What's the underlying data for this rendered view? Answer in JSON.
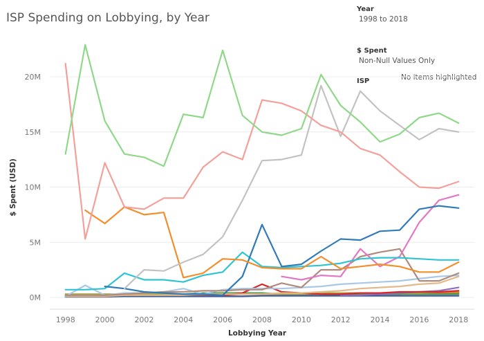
{
  "chart_data": {
    "type": "line",
    "title": "ISP Spending on Lobbying, by Year",
    "xlabel": "Lobbying Year",
    "ylabel": "$ Spent (USD)",
    "ylim": [
      0,
      24000000
    ],
    "xlim": [
      1997.2,
      2018.8
    ],
    "x": [
      1998,
      1999,
      2000,
      2001,
      2002,
      2003,
      2004,
      2005,
      2006,
      2007,
      2008,
      2009,
      2010,
      2011,
      2012,
      2013,
      2014,
      2015,
      2016,
      2017,
      2018
    ],
    "x_ticks": [
      {
        "value": 1998,
        "label": "1998"
      },
      {
        "value": 2000,
        "label": "2000"
      },
      {
        "value": 2002,
        "label": "2002"
      },
      {
        "value": 2004,
        "label": "2004"
      },
      {
        "value": 2006,
        "label": "2006"
      },
      {
        "value": 2008,
        "label": "2008"
      },
      {
        "value": 2010,
        "label": "2010"
      },
      {
        "value": 2012,
        "label": "2012"
      },
      {
        "value": 2014,
        "label": "2014"
      },
      {
        "value": 2016,
        "label": "2016"
      },
      {
        "value": 2018,
        "label": "2018"
      }
    ],
    "y_ticks": [
      {
        "value": 0,
        "label": "0M"
      },
      {
        "value": 5000000,
        "label": "5M"
      },
      {
        "value": 10000000,
        "label": "10M"
      },
      {
        "value": 15000000,
        "label": "15M"
      },
      {
        "value": 20000000,
        "label": "20M"
      }
    ],
    "legend": {
      "year_heading": "Year",
      "year_range": "1998 to 2018",
      "spent_heading": "$ Spent",
      "spent_filter": "Non-Null Values Only",
      "isp_heading": "ISP",
      "highlight_status": "No items highlighted"
    },
    "series": [
      {
        "name": "green",
        "color": "#8fd888",
        "values": [
          13.0,
          22.9,
          16.0,
          13.0,
          12.7,
          11.9,
          16.6,
          16.3,
          22.4,
          16.5,
          15.0,
          14.7,
          15.3,
          20.2,
          17.4,
          15.9,
          14.1,
          14.8,
          16.3,
          16.7,
          15.8
        ]
      },
      {
        "name": "salmon",
        "color": "#f4a09a",
        "values": [
          21.2,
          5.3,
          12.2,
          8.2,
          8.0,
          9.0,
          9.0,
          11.8,
          13.2,
          12.5,
          17.9,
          17.6,
          16.9,
          15.6,
          15.0,
          13.5,
          12.9,
          11.4,
          10.0,
          9.9,
          10.5
        ]
      },
      {
        "name": "gray",
        "color": "#c2c2c2",
        "values": [
          null,
          null,
          null,
          0.8,
          2.5,
          2.4,
          3.2,
          3.9,
          5.5,
          8.8,
          12.4,
          12.5,
          12.9,
          19.2,
          14.6,
          18.7,
          16.9,
          15.6,
          14.3,
          15.3,
          15.0
        ]
      },
      {
        "name": "orange",
        "color": "#f28e2b",
        "values": [
          null,
          7.9,
          6.7,
          8.2,
          7.5,
          7.7,
          1.8,
          2.2,
          3.5,
          3.4,
          2.7,
          2.6,
          2.6,
          3.7,
          2.6,
          2.8,
          3.0,
          2.8,
          2.3,
          2.3,
          3.2
        ]
      },
      {
        "name": "blue",
        "color": "#2f7ab8",
        "values": [
          null,
          null,
          1.0,
          0.8,
          0.5,
          0.4,
          0.3,
          0.3,
          0.2,
          1.9,
          6.6,
          2.8,
          3.0,
          4.2,
          5.3,
          5.2,
          6.0,
          6.1,
          8.0,
          8.3,
          8.1
        ]
      },
      {
        "name": "teal",
        "color": "#2ec4d2",
        "values": [
          0.7,
          0.7,
          0.8,
          2.2,
          1.6,
          1.6,
          1.4,
          2.0,
          2.3,
          4.1,
          2.8,
          2.7,
          2.8,
          2.9,
          3.1,
          3.5,
          3.6,
          3.6,
          3.5,
          3.4,
          3.4
        ]
      },
      {
        "name": "pink",
        "color": "#e377c2",
        "values": [
          null,
          null,
          null,
          null,
          null,
          null,
          null,
          null,
          null,
          null,
          null,
          1.9,
          1.6,
          2.0,
          1.9,
          4.4,
          2.8,
          3.7,
          6.8,
          8.8,
          9.3
        ]
      },
      {
        "name": "brown",
        "color": "#b08a7a",
        "values": [
          0.2,
          0.2,
          0.2,
          0.3,
          0.4,
          0.5,
          0.5,
          0.6,
          0.6,
          0.7,
          0.7,
          1.3,
          0.9,
          2.5,
          2.5,
          3.7,
          4.1,
          4.4,
          1.5,
          1.5,
          2.2
        ]
      },
      {
        "name": "light-blue",
        "color": "#a9c8e6",
        "values": [
          0.1,
          1.1,
          0.2,
          0.4,
          0.4,
          0.5,
          0.8,
          0.3,
          0.7,
          0.8,
          0.8,
          0.8,
          0.9,
          1.0,
          1.2,
          1.3,
          1.4,
          1.5,
          1.7,
          1.9,
          2.0
        ]
      },
      {
        "name": "tan",
        "color": "#e3b88a",
        "values": [
          0.1,
          0.1,
          0.1,
          0.2,
          0.2,
          0.2,
          0.2,
          0.3,
          0.3,
          0.3,
          0.3,
          0.4,
          0.4,
          0.5,
          0.6,
          0.8,
          0.9,
          1.0,
          1.2,
          1.3,
          1.9
        ]
      },
      {
        "name": "dark-red",
        "color": "#d62728",
        "values": [
          null,
          null,
          null,
          null,
          null,
          null,
          null,
          null,
          0.2,
          0.4,
          1.2,
          0.5,
          0.4,
          0.3,
          0.3,
          0.4,
          0.4,
          0.5,
          0.5,
          0.5,
          0.6
        ]
      },
      {
        "name": "purple",
        "color": "#8a6cc0",
        "values": [
          null,
          null,
          null,
          null,
          null,
          null,
          null,
          null,
          null,
          null,
          null,
          null,
          null,
          null,
          0.2,
          0.2,
          0.3,
          0.4,
          0.5,
          0.6,
          0.9
        ]
      },
      {
        "name": "olive",
        "color": "#a8a84b",
        "values": [
          0.3,
          0.3,
          0.3,
          0.3,
          0.3,
          0.3,
          0.3,
          0.3,
          0.3,
          0.3,
          0.3,
          0.3,
          0.3,
          0.4,
          0.4,
          0.4,
          0.4,
          0.4,
          0.4,
          0.5,
          0.5
        ]
      },
      {
        "name": "dark-green",
        "color": "#4e9a4e",
        "values": [
          0.2,
          0.2,
          0.2,
          0.2,
          0.3,
          0.3,
          0.3,
          0.4,
          0.4,
          0.4,
          0.4,
          0.3,
          0.3,
          0.3,
          0.3,
          0.3,
          0.3,
          0.3,
          0.3,
          0.3,
          0.3
        ]
      },
      {
        "name": "navy",
        "color": "#3b5b92",
        "values": [
          0.05,
          0.05,
          0.05,
          0.1,
          0.1,
          0.1,
          0.1,
          0.1,
          0.1,
          0.1,
          0.15,
          0.15,
          0.15,
          0.15,
          0.15,
          0.15,
          0.15,
          0.15,
          0.15,
          0.15,
          0.15
        ]
      },
      {
        "name": "red-orange",
        "color": "#e8603c",
        "values": [
          null,
          null,
          null,
          null,
          0.1,
          0.2,
          0.2,
          0.2,
          0.2,
          0.3,
          0.3,
          0.3,
          0.3,
          0.3,
          0.2,
          0.3,
          0.3,
          0.3,
          0.4,
          0.4,
          0.4
        ]
      }
    ]
  }
}
